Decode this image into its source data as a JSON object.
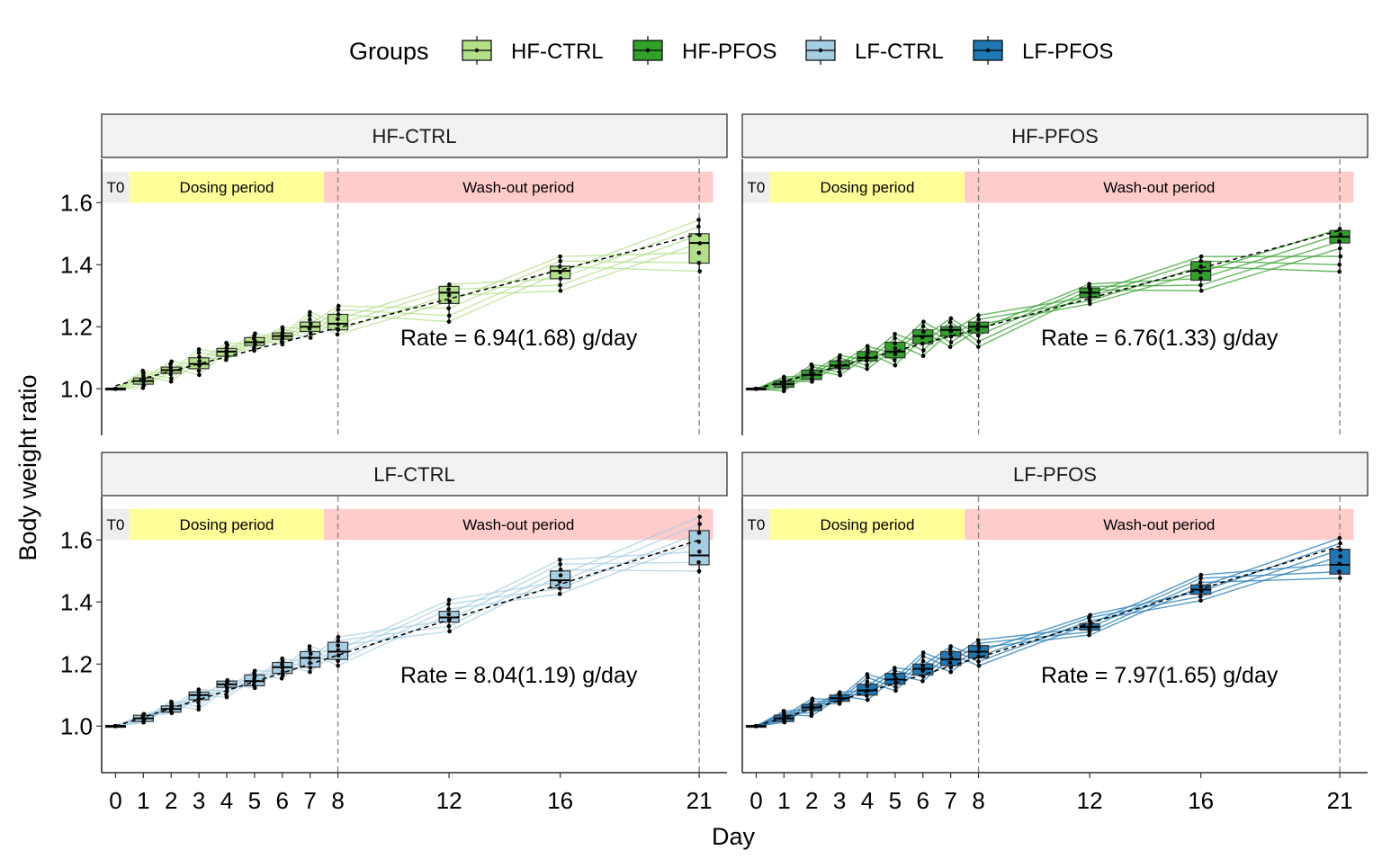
{
  "legend": {
    "title": "Groups",
    "items": [
      {
        "label": "HF-CTRL",
        "color": "#b2df8a"
      },
      {
        "label": "HF-PFOS",
        "color": "#33a02c"
      },
      {
        "label": "LF-CTRL",
        "color": "#a6cee3"
      },
      {
        "label": "LF-PFOS",
        "color": "#1f78b4"
      }
    ]
  },
  "xlabel": "Day",
  "ylabel": "Body weight ratio",
  "period_labels": {
    "t0": "T0",
    "dosing": "Dosing period",
    "washout": "Wash-out period"
  },
  "period_colors": {
    "t0": "#eeeeee",
    "dosing": "#ffff99",
    "washout": "#ffcccc"
  },
  "x_ticks": [
    0,
    1,
    2,
    3,
    4,
    5,
    6,
    7,
    8,
    12,
    16,
    21
  ],
  "y_ticks": [
    "1.0",
    "1.2",
    "1.4",
    "1.6"
  ],
  "panels": [
    {
      "title": "HF-CTRL",
      "rate": "Rate = 6.94(1.68) g/day"
    },
    {
      "title": "HF-PFOS",
      "rate": "Rate = 6.76(1.33) g/day"
    },
    {
      "title": "LF-CTRL",
      "rate": "Rate = 8.04(1.19) g/day"
    },
    {
      "title": "LF-PFOS",
      "rate": "Rate = 7.97(1.65) g/day"
    }
  ],
  "chart_data": [
    {
      "type": "box",
      "title": "HF-CTRL",
      "color": "#b2df8a",
      "x": [
        0,
        1,
        2,
        3,
        4,
        5,
        6,
        7,
        8,
        12,
        16,
        21
      ],
      "median": [
        1.0,
        1.025,
        1.06,
        1.08,
        1.12,
        1.15,
        1.17,
        1.2,
        1.21,
        1.31,
        1.38,
        1.47
      ],
      "q1": [
        0.998,
        1.015,
        1.05,
        1.065,
        1.105,
        1.14,
        1.16,
        1.185,
        1.19,
        1.275,
        1.355,
        1.405
      ],
      "q3": [
        1.002,
        1.035,
        1.07,
        1.1,
        1.13,
        1.165,
        1.18,
        1.215,
        1.24,
        1.33,
        1.395,
        1.5
      ],
      "min": [
        1.0,
        1.0,
        1.02,
        1.04,
        1.09,
        1.12,
        1.14,
        1.16,
        1.17,
        1.21,
        1.31,
        1.37
      ],
      "max": [
        1.0,
        1.06,
        1.09,
        1.13,
        1.15,
        1.18,
        1.2,
        1.25,
        1.27,
        1.34,
        1.43,
        1.55
      ],
      "trend": {
        "x": [
          0,
          21
        ],
        "y": [
          1.01,
          1.5
        ]
      },
      "xlim": [
        -0.5,
        22
      ],
      "ylim": [
        0.85,
        1.74
      ]
    },
    {
      "type": "box",
      "title": "HF-PFOS",
      "color": "#33a02c",
      "x": [
        0,
        1,
        2,
        3,
        4,
        5,
        6,
        7,
        8,
        12,
        16,
        21
      ],
      "median": [
        1.0,
        1.015,
        1.045,
        1.075,
        1.1,
        1.12,
        1.17,
        1.19,
        1.2,
        1.31,
        1.38,
        1.49
      ],
      "q1": [
        0.998,
        1.005,
        1.03,
        1.065,
        1.09,
        1.1,
        1.145,
        1.17,
        1.18,
        1.295,
        1.35,
        1.47
      ],
      "q3": [
        1.002,
        1.025,
        1.06,
        1.09,
        1.12,
        1.15,
        1.19,
        1.2,
        1.215,
        1.325,
        1.41,
        1.51
      ],
      "min": [
        1.0,
        0.99,
        1.02,
        1.04,
        1.06,
        1.07,
        1.1,
        1.13,
        1.13,
        1.27,
        1.31,
        1.37
      ],
      "max": [
        1.0,
        1.04,
        1.08,
        1.11,
        1.14,
        1.18,
        1.22,
        1.23,
        1.24,
        1.34,
        1.43,
        1.52
      ],
      "trend": {
        "x": [
          0,
          21
        ],
        "y": [
          1.0,
          1.51
        ]
      },
      "xlim": [
        -0.5,
        22
      ],
      "ylim": [
        0.85,
        1.74
      ]
    },
    {
      "type": "box",
      "title": "LF-CTRL",
      "color": "#a6cee3",
      "x": [
        0,
        1,
        2,
        3,
        4,
        5,
        6,
        7,
        8,
        12,
        16,
        21
      ],
      "median": [
        1.0,
        1.025,
        1.055,
        1.1,
        1.135,
        1.145,
        1.19,
        1.22,
        1.24,
        1.35,
        1.47,
        1.55
      ],
      "q1": [
        0.998,
        1.015,
        1.045,
        1.085,
        1.125,
        1.13,
        1.17,
        1.19,
        1.215,
        1.335,
        1.445,
        1.52
      ],
      "q3": [
        1.002,
        1.035,
        1.065,
        1.11,
        1.145,
        1.165,
        1.205,
        1.24,
        1.27,
        1.37,
        1.5,
        1.63
      ],
      "min": [
        1.0,
        1.01,
        1.04,
        1.05,
        1.09,
        1.12,
        1.15,
        1.17,
        1.19,
        1.3,
        1.42,
        1.49
      ],
      "max": [
        1.0,
        1.04,
        1.08,
        1.12,
        1.15,
        1.18,
        1.22,
        1.26,
        1.29,
        1.41,
        1.54,
        1.68
      ],
      "trend": {
        "x": [
          0,
          21
        ],
        "y": [
          1.0,
          1.6
        ]
      },
      "xlim": [
        -0.5,
        22
      ],
      "ylim": [
        0.85,
        1.74
      ]
    },
    {
      "type": "box",
      "title": "LF-PFOS",
      "color": "#1f78b4",
      "x": [
        0,
        1,
        2,
        3,
        4,
        5,
        6,
        7,
        8,
        12,
        16,
        21
      ],
      "median": [
        1.0,
        1.025,
        1.06,
        1.09,
        1.115,
        1.15,
        1.185,
        1.215,
        1.24,
        1.32,
        1.44,
        1.52
      ],
      "q1": [
        0.998,
        1.015,
        1.05,
        1.08,
        1.1,
        1.135,
        1.165,
        1.195,
        1.22,
        1.31,
        1.425,
        1.49
      ],
      "q3": [
        1.002,
        1.035,
        1.07,
        1.1,
        1.135,
        1.17,
        1.2,
        1.24,
        1.26,
        1.33,
        1.455,
        1.57
      ],
      "min": [
        1.0,
        1.01,
        1.03,
        1.07,
        1.08,
        1.11,
        1.14,
        1.17,
        1.19,
        1.29,
        1.4,
        1.47
      ],
      "max": [
        1.0,
        1.05,
        1.09,
        1.11,
        1.17,
        1.19,
        1.24,
        1.26,
        1.28,
        1.36,
        1.49,
        1.61
      ],
      "trend": {
        "x": [
          0,
          21
        ],
        "y": [
          1.0,
          1.58
        ]
      },
      "xlim": [
        -0.5,
        22
      ],
      "ylim": [
        0.85,
        1.74
      ]
    }
  ]
}
